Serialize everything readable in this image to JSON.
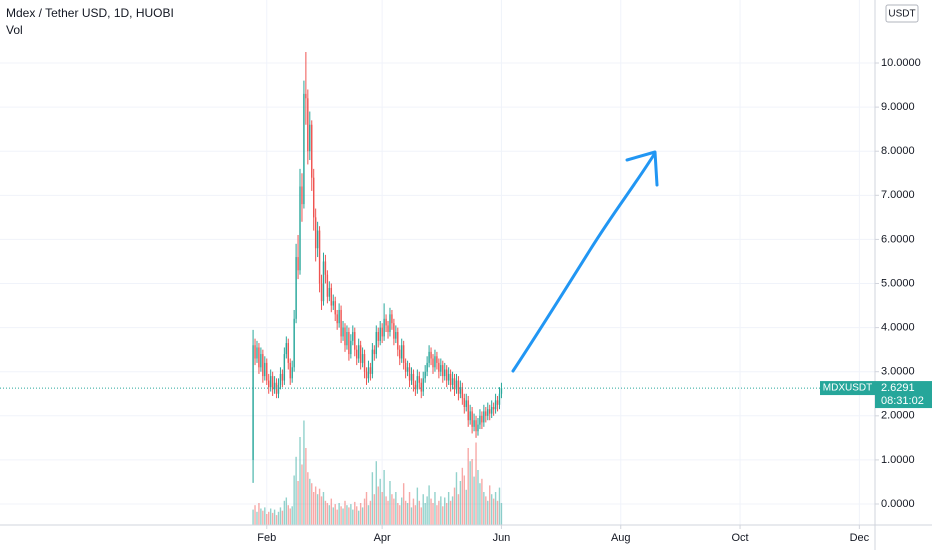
{
  "chart_data": {
    "type": "candlestick",
    "title": "Mdex / Tether USD, 1D, HUOBI",
    "volume_label": "Vol",
    "currency": "USDT",
    "symbol": "MDXUSDT",
    "last_price": 2.6291,
    "countdown": "08:31:02",
    "up_color": "#26a69a",
    "down_color": "#ef5350",
    "xlim": [
      -129.4,
      318
    ],
    "xticks": [
      {
        "value": 7,
        "label": "Feb"
      },
      {
        "value": 66,
        "label": "Apr"
      },
      {
        "value": 127,
        "label": "Jun"
      },
      {
        "value": 188,
        "label": "Aug"
      },
      {
        "value": 249,
        "label": "Oct"
      },
      {
        "value": 310,
        "label": "Dec"
      }
    ],
    "ylim": [
      -0.476,
      11.429
    ],
    "yticks": [
      {
        "value": 0,
        "label": "0.0000"
      },
      {
        "value": 1,
        "label": "1.0000"
      },
      {
        "value": 2,
        "label": "2.0000"
      },
      {
        "value": 3,
        "label": "3.0000"
      },
      {
        "value": 4,
        "label": "4.0000"
      },
      {
        "value": 5,
        "label": "5.0000"
      },
      {
        "value": 6,
        "label": "6.0000"
      },
      {
        "value": 7,
        "label": "7.0000"
      },
      {
        "value": 8,
        "label": "8.0000"
      },
      {
        "value": 9,
        "label": "9.0000"
      },
      {
        "value": 10,
        "label": "10.0000"
      }
    ],
    "grid": true,
    "volume_lim": [
      0,
      100
    ],
    "candles": [
      [
        1.0,
        3.95,
        0.48,
        3.6
      ],
      [
        3.6,
        3.75,
        3.15,
        3.3
      ],
      [
        3.3,
        3.7,
        3.2,
        3.55
      ],
      [
        3.55,
        3.65,
        2.95,
        3.1
      ],
      [
        3.1,
        3.55,
        3.0,
        3.4
      ],
      [
        3.4,
        3.5,
        2.75,
        2.9
      ],
      [
        2.9,
        3.35,
        2.8,
        3.2
      ],
      [
        3.2,
        3.3,
        2.7,
        2.8
      ],
      [
        2.8,
        2.95,
        2.5,
        2.65
      ],
      [
        2.65,
        3.05,
        2.55,
        2.9
      ],
      [
        2.9,
        3.0,
        2.45,
        2.6
      ],
      [
        2.6,
        2.9,
        2.5,
        2.75
      ],
      [
        2.75,
        2.85,
        2.4,
        2.5
      ],
      [
        2.5,
        2.85,
        2.4,
        2.7
      ],
      [
        2.7,
        3.1,
        2.6,
        2.95
      ],
      [
        2.95,
        3.05,
        2.65,
        2.8
      ],
      [
        2.8,
        3.55,
        2.7,
        3.4
      ],
      [
        3.4,
        3.8,
        3.3,
        3.65
      ],
      [
        3.65,
        3.75,
        3.05,
        3.2
      ],
      [
        3.2,
        3.3,
        2.7,
        2.85
      ],
      [
        2.85,
        3.25,
        2.75,
        3.1
      ],
      [
        3.1,
        4.4,
        3.0,
        4.2
      ],
      [
        4.2,
        5.9,
        4.1,
        5.6
      ],
      [
        5.6,
        6.1,
        5.1,
        5.3
      ],
      [
        5.3,
        7.6,
        5.2,
        7.2
      ],
      [
        7.2,
        7.5,
        6.4,
        6.8
      ],
      [
        6.8,
        9.6,
        6.7,
        9.3
      ],
      [
        9.3,
        10.25,
        8.6,
        9.2
      ],
      [
        9.2,
        9.4,
        7.7,
        8.0
      ],
      [
        8.0,
        8.9,
        7.8,
        8.6
      ],
      [
        8.6,
        8.7,
        7.1,
        7.4
      ],
      [
        7.4,
        7.6,
        6.2,
        6.5
      ],
      [
        6.5,
        6.7,
        5.5,
        5.8
      ],
      [
        5.8,
        6.4,
        5.6,
        6.2
      ],
      [
        6.2,
        6.3,
        4.8,
        5.0
      ],
      [
        5.0,
        5.2,
        4.4,
        4.6
      ],
      [
        4.6,
        5.7,
        4.5,
        5.5
      ],
      [
        5.5,
        5.65,
        5.0,
        5.2
      ],
      [
        5.2,
        5.3,
        4.55,
        4.7
      ],
      [
        4.7,
        5.05,
        4.6,
        4.9
      ],
      [
        4.9,
        5.0,
        4.35,
        4.5
      ],
      [
        4.5,
        4.75,
        4.4,
        4.6
      ],
      [
        4.6,
        4.7,
        4.15,
        4.3
      ],
      [
        4.3,
        4.4,
        3.95,
        4.1
      ],
      [
        4.1,
        4.55,
        4.0,
        4.4
      ],
      [
        4.4,
        4.5,
        3.65,
        3.8
      ],
      [
        3.8,
        4.15,
        3.7,
        4.0
      ],
      [
        4.0,
        4.1,
        3.45,
        3.6
      ],
      [
        3.6,
        4.05,
        3.5,
        3.9
      ],
      [
        3.9,
        4.0,
        3.25,
        3.4
      ],
      [
        3.4,
        3.85,
        3.3,
        3.7
      ],
      [
        3.7,
        4.05,
        3.6,
        3.9
      ],
      [
        3.9,
        4.0,
        3.35,
        3.5
      ],
      [
        3.5,
        3.6,
        3.15,
        3.3
      ],
      [
        3.3,
        3.75,
        3.2,
        3.6
      ],
      [
        3.6,
        3.7,
        3.05,
        3.2
      ],
      [
        3.2,
        3.55,
        3.1,
        3.4
      ],
      [
        3.4,
        3.5,
        2.85,
        3.0
      ],
      [
        3.0,
        3.1,
        2.7,
        2.85
      ],
      [
        2.85,
        3.25,
        2.75,
        3.1
      ],
      [
        3.1,
        3.2,
        2.8,
        2.95
      ],
      [
        2.95,
        3.65,
        2.85,
        3.5
      ],
      [
        3.5,
        3.6,
        3.25,
        3.4
      ],
      [
        3.4,
        4.05,
        3.3,
        3.9
      ],
      [
        3.9,
        4.0,
        3.55,
        3.7
      ],
      [
        3.7,
        4.15,
        3.6,
        4.0
      ],
      [
        4.0,
        4.1,
        3.65,
        3.8
      ],
      [
        3.8,
        4.55,
        3.7,
        4.2
      ],
      [
        4.2,
        4.3,
        3.9,
        4.05
      ],
      [
        4.05,
        4.15,
        3.75,
        3.9
      ],
      [
        3.9,
        4.45,
        3.8,
        4.3
      ],
      [
        4.3,
        4.4,
        3.95,
        4.1
      ],
      [
        4.1,
        4.2,
        3.6,
        3.75
      ],
      [
        3.75,
        4.05,
        3.65,
        3.9
      ],
      [
        3.9,
        4.0,
        3.35,
        3.5
      ],
      [
        3.5,
        3.6,
        3.15,
        3.3
      ],
      [
        3.3,
        3.75,
        3.2,
        3.6
      ],
      [
        3.6,
        3.7,
        3.05,
        3.2
      ],
      [
        3.2,
        3.3,
        2.85,
        3.0
      ],
      [
        3.0,
        3.25,
        2.9,
        3.1
      ],
      [
        3.1,
        3.2,
        2.65,
        2.8
      ],
      [
        2.8,
        3.1,
        2.7,
        2.95
      ],
      [
        2.95,
        3.05,
        2.55,
        2.7
      ],
      [
        2.7,
        2.8,
        2.45,
        2.6
      ],
      [
        2.6,
        3.05,
        2.5,
        2.9
      ],
      [
        2.9,
        3.0,
        2.6,
        2.75
      ],
      [
        2.75,
        2.85,
        2.4,
        2.55
      ],
      [
        2.55,
        3.0,
        2.45,
        2.85
      ],
      [
        2.85,
        3.15,
        2.75,
        3.0
      ],
      [
        3.0,
        3.35,
        2.9,
        3.2
      ],
      [
        3.2,
        3.6,
        3.1,
        3.45
      ],
      [
        3.45,
        3.55,
        3.15,
        3.3
      ],
      [
        3.3,
        3.4,
        2.95,
        3.1
      ],
      [
        3.1,
        3.5,
        3.0,
        3.35
      ],
      [
        3.35,
        3.45,
        3.05,
        3.2
      ],
      [
        3.2,
        3.3,
        2.85,
        3.0
      ],
      [
        3.0,
        3.3,
        2.9,
        3.15
      ],
      [
        3.15,
        3.25,
        2.75,
        2.9
      ],
      [
        2.9,
        3.2,
        2.8,
        3.05
      ],
      [
        3.05,
        3.15,
        2.65,
        2.8
      ],
      [
        2.8,
        3.1,
        2.7,
        2.95
      ],
      [
        2.95,
        3.05,
        2.55,
        2.7
      ],
      [
        2.7,
        3.0,
        2.6,
        2.85
      ],
      [
        2.85,
        2.95,
        2.45,
        2.6
      ],
      [
        2.6,
        2.95,
        2.5,
        2.8
      ],
      [
        2.8,
        2.9,
        2.35,
        2.5
      ],
      [
        2.5,
        2.8,
        2.4,
        2.65
      ],
      [
        2.65,
        2.75,
        2.25,
        2.4
      ],
      [
        2.4,
        2.5,
        2.05,
        2.2
      ],
      [
        2.2,
        2.5,
        2.1,
        2.35
      ],
      [
        2.35,
        2.45,
        1.75,
        1.9
      ],
      [
        1.9,
        2.25,
        1.8,
        2.1
      ],
      [
        2.1,
        2.2,
        1.6,
        1.75
      ],
      [
        1.75,
        2.05,
        1.65,
        1.9
      ],
      [
        1.9,
        2.0,
        1.5,
        1.65
      ],
      [
        1.65,
        1.95,
        1.55,
        1.8
      ],
      [
        1.8,
        2.15,
        1.7,
        2.0
      ],
      [
        2.0,
        2.1,
        1.7,
        1.85
      ],
      [
        1.85,
        2.25,
        1.75,
        2.1
      ],
      [
        2.1,
        2.2,
        1.85,
        2.0
      ],
      [
        2.0,
        2.3,
        1.9,
        2.15
      ],
      [
        2.15,
        2.25,
        1.9,
        2.05
      ],
      [
        2.05,
        2.35,
        1.95,
        2.2
      ],
      [
        2.2,
        2.3,
        2.0,
        2.15
      ],
      [
        2.15,
        2.5,
        2.05,
        2.35
      ],
      [
        2.35,
        2.45,
        2.1,
        2.25
      ],
      [
        2.25,
        2.65,
        2.15,
        2.5
      ],
      [
        2.5,
        2.75,
        2.4,
        2.6291
      ]
    ],
    "volume": [
      14,
      18,
      12,
      20,
      15,
      13,
      16,
      10,
      12,
      15,
      11,
      14,
      9,
      12,
      16,
      13,
      22,
      25,
      18,
      15,
      17,
      45,
      62,
      40,
      80,
      55,
      95,
      70,
      48,
      42,
      38,
      30,
      35,
      28,
      33,
      26,
      30,
      22,
      20,
      18,
      24,
      16,
      19,
      14,
      20,
      17,
      15,
      22,
      18,
      16,
      19,
      14,
      21,
      17,
      13,
      20,
      16,
      24,
      30,
      18,
      22,
      48,
      28,
      58,
      35,
      42,
      30,
      50,
      26,
      22,
      40,
      28,
      24,
      30,
      20,
      18,
      25,
      38,
      22,
      20,
      30,
      16,
      24,
      18,
      34,
      22,
      16,
      28,
      20,
      26,
      36,
      24,
      20,
      30,
      18,
      22,
      26,
      17,
      25,
      20,
      30,
      22,
      26,
      34,
      48,
      28,
      40,
      52,
      45,
      32,
      70,
      58,
      60,
      44,
      75,
      50,
      38,
      42,
      30,
      26,
      22,
      36,
      28,
      24,
      30,
      22,
      34,
      20
    ]
  }
}
